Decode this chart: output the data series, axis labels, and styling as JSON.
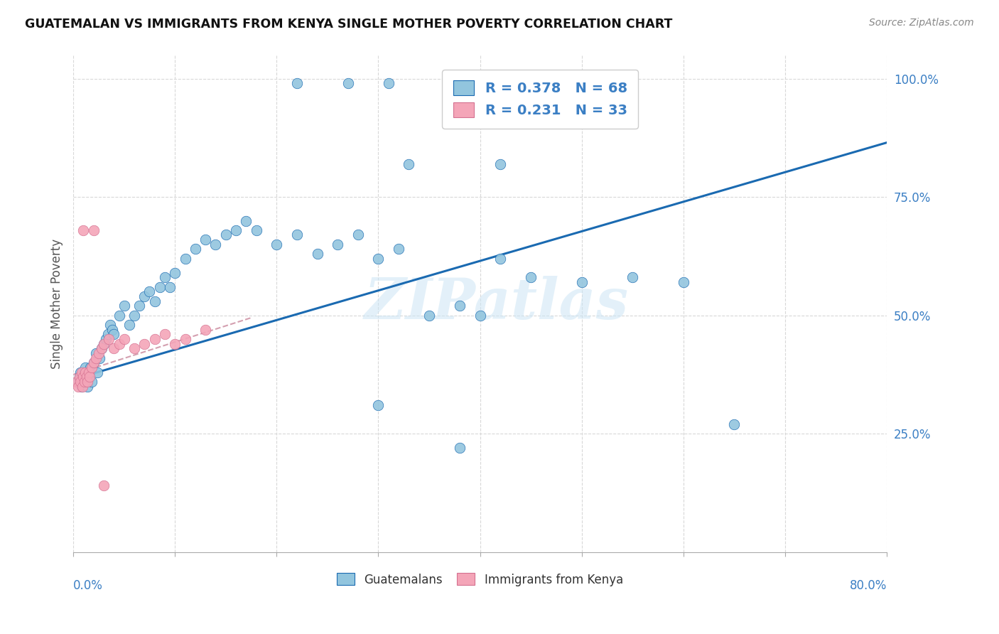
{
  "title": "GUATEMALAN VS IMMIGRANTS FROM KENYA SINGLE MOTHER POVERTY CORRELATION CHART",
  "source": "Source: ZipAtlas.com",
  "ylabel": "Single Mother Poverty",
  "xmin": 0.0,
  "xmax": 0.8,
  "ymin": 0.0,
  "ymax": 1.05,
  "legend_R1": "R = 0.378",
  "legend_N1": "N = 68",
  "legend_R2": "R = 0.231",
  "legend_N2": "N = 33",
  "watermark": "ZIPatlas",
  "color_blue": "#92c5de",
  "color_pink": "#f4a5b8",
  "color_blue_text": "#3b7fc4",
  "color_trendline_blue": "#1a6ab1",
  "color_trendline_pink": "#d4a0b0",
  "color_grid": "#d8d8d8",
  "blue_trendline_x": [
    0.0,
    0.8
  ],
  "blue_trendline_y": [
    0.365,
    0.865
  ],
  "pink_trendline_x": [
    0.0,
    0.175
  ],
  "pink_trendline_y": [
    0.375,
    0.495
  ],
  "guat_x": [
    0.004,
    0.006,
    0.007,
    0.008,
    0.009,
    0.01,
    0.011,
    0.012,
    0.013,
    0.014,
    0.015,
    0.016,
    0.017,
    0.018,
    0.02,
    0.022,
    0.024,
    0.026,
    0.028,
    0.03,
    0.032,
    0.034,
    0.036,
    0.038,
    0.04,
    0.045,
    0.05,
    0.055,
    0.06,
    0.065,
    0.07,
    0.075,
    0.08,
    0.085,
    0.09,
    0.095,
    0.1,
    0.11,
    0.12,
    0.13,
    0.14,
    0.15,
    0.16,
    0.17,
    0.18,
    0.2,
    0.22,
    0.24,
    0.26,
    0.28,
    0.3,
    0.32,
    0.35,
    0.38,
    0.4,
    0.42,
    0.45,
    0.5,
    0.55,
    0.6,
    0.22,
    0.27,
    0.31,
    0.33,
    0.42,
    0.65,
    0.3,
    0.38
  ],
  "guat_y": [
    0.36,
    0.37,
    0.38,
    0.35,
    0.36,
    0.37,
    0.38,
    0.39,
    0.36,
    0.35,
    0.37,
    0.38,
    0.39,
    0.36,
    0.4,
    0.42,
    0.38,
    0.41,
    0.43,
    0.44,
    0.45,
    0.46,
    0.48,
    0.47,
    0.46,
    0.5,
    0.52,
    0.48,
    0.5,
    0.52,
    0.54,
    0.55,
    0.53,
    0.56,
    0.58,
    0.56,
    0.59,
    0.62,
    0.64,
    0.66,
    0.65,
    0.67,
    0.68,
    0.7,
    0.68,
    0.65,
    0.67,
    0.63,
    0.65,
    0.67,
    0.62,
    0.64,
    0.5,
    0.52,
    0.5,
    0.62,
    0.58,
    0.57,
    0.58,
    0.57,
    0.99,
    0.99,
    0.99,
    0.82,
    0.82,
    0.27,
    0.31,
    0.22
  ],
  "kenya_x": [
    0.003,
    0.005,
    0.006,
    0.007,
    0.008,
    0.009,
    0.01,
    0.011,
    0.012,
    0.013,
    0.014,
    0.015,
    0.016,
    0.018,
    0.02,
    0.022,
    0.025,
    0.028,
    0.03,
    0.035,
    0.04,
    0.045,
    0.05,
    0.06,
    0.07,
    0.08,
    0.09,
    0.1,
    0.11,
    0.13,
    0.01,
    0.02,
    0.03
  ],
  "kenya_y": [
    0.36,
    0.35,
    0.37,
    0.36,
    0.38,
    0.35,
    0.37,
    0.36,
    0.38,
    0.37,
    0.36,
    0.38,
    0.37,
    0.39,
    0.4,
    0.41,
    0.42,
    0.43,
    0.44,
    0.45,
    0.43,
    0.44,
    0.45,
    0.43,
    0.44,
    0.45,
    0.46,
    0.44,
    0.45,
    0.47,
    0.68,
    0.68,
    0.14
  ]
}
